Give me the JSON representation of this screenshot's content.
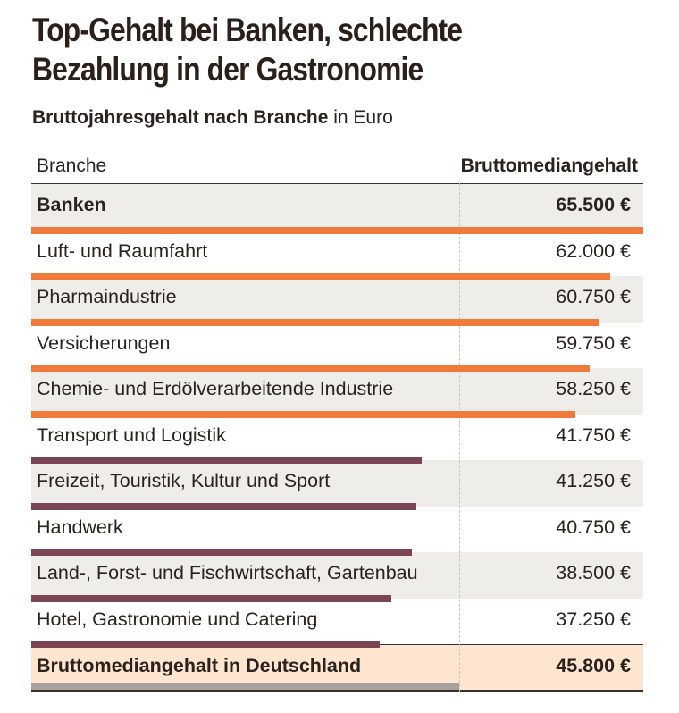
{
  "title_lines": [
    "Top-Gehalt bei Banken, schlechte",
    "Bezahlung in der Gastronomie"
  ],
  "subtitle_bold": "Bruttojahresgehalt nach Branche",
  "subtitle_rest": " in Euro",
  "colors": {
    "high": "#f07a3a",
    "low": "#7d4454",
    "average": "#a9a29c",
    "total_bg": "#fde5d0",
    "stripe_bg": "#efedea"
  },
  "chart_data": {
    "type": "bar",
    "orientation": "horizontal",
    "columns": [
      "Branche",
      "Bruttomediangehalt"
    ],
    "unit": "€",
    "categories": [
      "Banken",
      "Luft- und Raumfahrt",
      "Pharmaindustrie",
      "Versicherungen",
      "Chemie- und Erdölverarbeitende Industrie",
      "Transport und Logistik",
      "Freizeit, Touristik, Kultur und Sport",
      "Handwerk",
      "Land-, Forst- und Fischwirtschaft, Gartenbau",
      "Hotel, Gastronomie und Catering"
    ],
    "values": [
      65500,
      62000,
      60750,
      59750,
      58250,
      41750,
      41250,
      40750,
      38500,
      37250
    ],
    "labels": [
      "65.500 €",
      "62.000 €",
      "60.750 €",
      "59.750 €",
      "58.250 €",
      "41.750 €",
      "41.250 €",
      "40.750 €",
      "38.500 €",
      "37.250 €"
    ],
    "total": {
      "label": "Bruttomediangehalt in Deutschland",
      "value": 45800,
      "value_label": "45.800 €"
    },
    "xlim": [
      0,
      65500
    ],
    "reference_line": 45800
  }
}
